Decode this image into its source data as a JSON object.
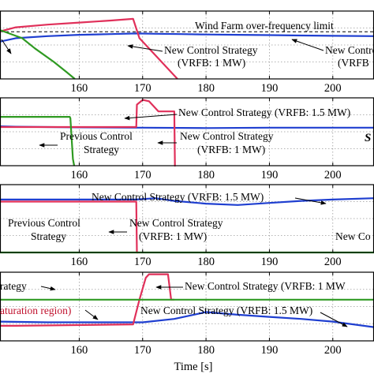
{
  "figure": {
    "xlabel": "Time [s]",
    "colors": {
      "blue": "#1f3fd0",
      "red": "#e0305a",
      "green": "#2f9a22",
      "sat_label": "#c0102c",
      "grid": "#9a9a9a",
      "axis": "#000000"
    }
  },
  "chart_data": [
    {
      "type": "line",
      "panel": 1,
      "x_ticks": [
        160,
        170,
        180,
        190,
        200
      ],
      "xlim": [
        147.5,
        206.5
      ],
      "grid": true,
      "series": [
        {
          "color": "blue",
          "x": [
            147.5,
            150,
            155,
            160,
            165,
            169,
            172,
            176,
            180,
            185,
            190,
            195,
            200,
            206.5
          ],
          "y": [
            0.55,
            0.6,
            0.63,
            0.65,
            0.66,
            0.67,
            0.665,
            0.66,
            0.655,
            0.65,
            0.645,
            0.64,
            0.635,
            0.63
          ]
        },
        {
          "color": "red",
          "x": [
            147.5,
            150,
            155,
            160,
            165,
            168.5,
            169.5,
            172,
            175,
            175.5
          ],
          "y": [
            0.7,
            0.76,
            0.8,
            0.83,
            0.86,
            0.885,
            0.6,
            0.35,
            0.05,
            0.0
          ]
        },
        {
          "color": "green",
          "x": [
            147.5,
            151,
            153,
            156,
            158,
            159.3
          ],
          "y": [
            0.72,
            0.6,
            0.45,
            0.25,
            0.1,
            0.0
          ]
        }
      ],
      "reference_lines": [
        {
          "y": 0.695,
          "label": "Wind Farm over-frequency limit",
          "style": "dashed"
        }
      ],
      "annotations": [
        {
          "text": "New Control Strategy",
          "text2": "(VRFB: 1 MW)"
        },
        {
          "text": "New Control",
          "text2": "(VRFB"
        }
      ]
    },
    {
      "type": "line",
      "panel": 2,
      "x_ticks": [
        160,
        170,
        180,
        190,
        200
      ],
      "xlim": [
        147.5,
        206.5
      ],
      "grid": true,
      "series": [
        {
          "color": "blue",
          "x": [
            147.5,
            150,
            160,
            169,
            170,
            180,
            190,
            200,
            206.5
          ],
          "y": [
            0.58,
            0.575,
            0.565,
            0.56,
            0.56,
            0.555,
            0.56,
            0.56,
            0.56
          ]
        },
        {
          "color": "red",
          "x": [
            147.5,
            169,
            169.1,
            170,
            171,
            172,
            172.5,
            172.6,
            175,
            175.1,
            175.2
          ],
          "y": [
            0.57,
            0.57,
            0.9,
            0.97,
            0.95,
            0.85,
            0.8,
            0.8,
            0.8,
            0.0,
            0.0
          ]
        },
        {
          "color": "green",
          "x": [
            147.5,
            158.5,
            158.6,
            159,
            159.2
          ],
          "y": [
            0.72,
            0.72,
            0.7,
            0.1,
            0.0
          ]
        }
      ],
      "annotations": [
        {
          "text": "New Control Strategy (VRFB: 1.5 MW)"
        },
        {
          "text": "Previous Control",
          "text2": "Strategy"
        },
        {
          "text": "New Control Strategy",
          "text2": "(VRFB: 1 MW)"
        },
        {
          "text": "S"
        }
      ]
    },
    {
      "type": "line",
      "panel": 3,
      "x_ticks": [
        160,
        170,
        180,
        190,
        200
      ],
      "xlim": [
        147.5,
        206.5
      ],
      "grid": true,
      "series": [
        {
          "color": "blue",
          "x": [
            147.5,
            160,
            169,
            172,
            175,
            180,
            185,
            190,
            195,
            200,
            206.5
          ],
          "y": [
            0.78,
            0.78,
            0.78,
            0.8,
            0.76,
            0.72,
            0.7,
            0.73,
            0.76,
            0.78,
            0.8
          ]
        },
        {
          "color": "red",
          "x": [
            147.5,
            169,
            169.1,
            169.3
          ],
          "y": [
            0.75,
            0.75,
            0.0,
            0.0
          ]
        },
        {
          "color": "green",
          "x": [
            147.5,
            206.5
          ],
          "y": [
            0.0,
            0.0
          ]
        }
      ],
      "annotations": [
        {
          "text": "New Control Strategy (VRFB: 1.5 MW)"
        },
        {
          "text": "Previous Control",
          "text2": "Strategy"
        },
        {
          "text": "New Control Strategy",
          "text2": "(VRFB: 1 MW)"
        },
        {
          "text": "New Co"
        }
      ]
    },
    {
      "type": "line",
      "panel": 4,
      "x_ticks": [
        160,
        170,
        180,
        190,
        200
      ],
      "xlim": [
        147.5,
        206.5
      ],
      "grid": true,
      "series": [
        {
          "color": "blue",
          "x": [
            147.5,
            155,
            160,
            165,
            170,
            175,
            180,
            185,
            190,
            195,
            200,
            206.5
          ],
          "y": [
            0.28,
            0.27,
            0.27,
            0.27,
            0.27,
            0.32,
            0.42,
            0.38,
            0.35,
            0.32,
            0.28,
            0.2
          ]
        },
        {
          "color": "red",
          "x": [
            147.5,
            150,
            168.5,
            169.5,
            170.5,
            171,
            174,
            174.5,
            175
          ],
          "y": [
            0.22,
            0.22,
            0.24,
            0.6,
            0.92,
            0.97,
            0.97,
            0.6,
            0.6
          ]
        },
        {
          "color": "green",
          "x": [
            147.5,
            206.5
          ],
          "y": [
            0.6,
            0.6
          ]
        }
      ],
      "annotations": [
        {
          "text": "rategy"
        },
        {
          "text": "New Control Strategy (VRFB: 1 MW"
        },
        {
          "text": "aturation region)"
        },
        {
          "text": "New Control Strategy (VRFB: 1.5 MW)"
        }
      ]
    }
  ]
}
